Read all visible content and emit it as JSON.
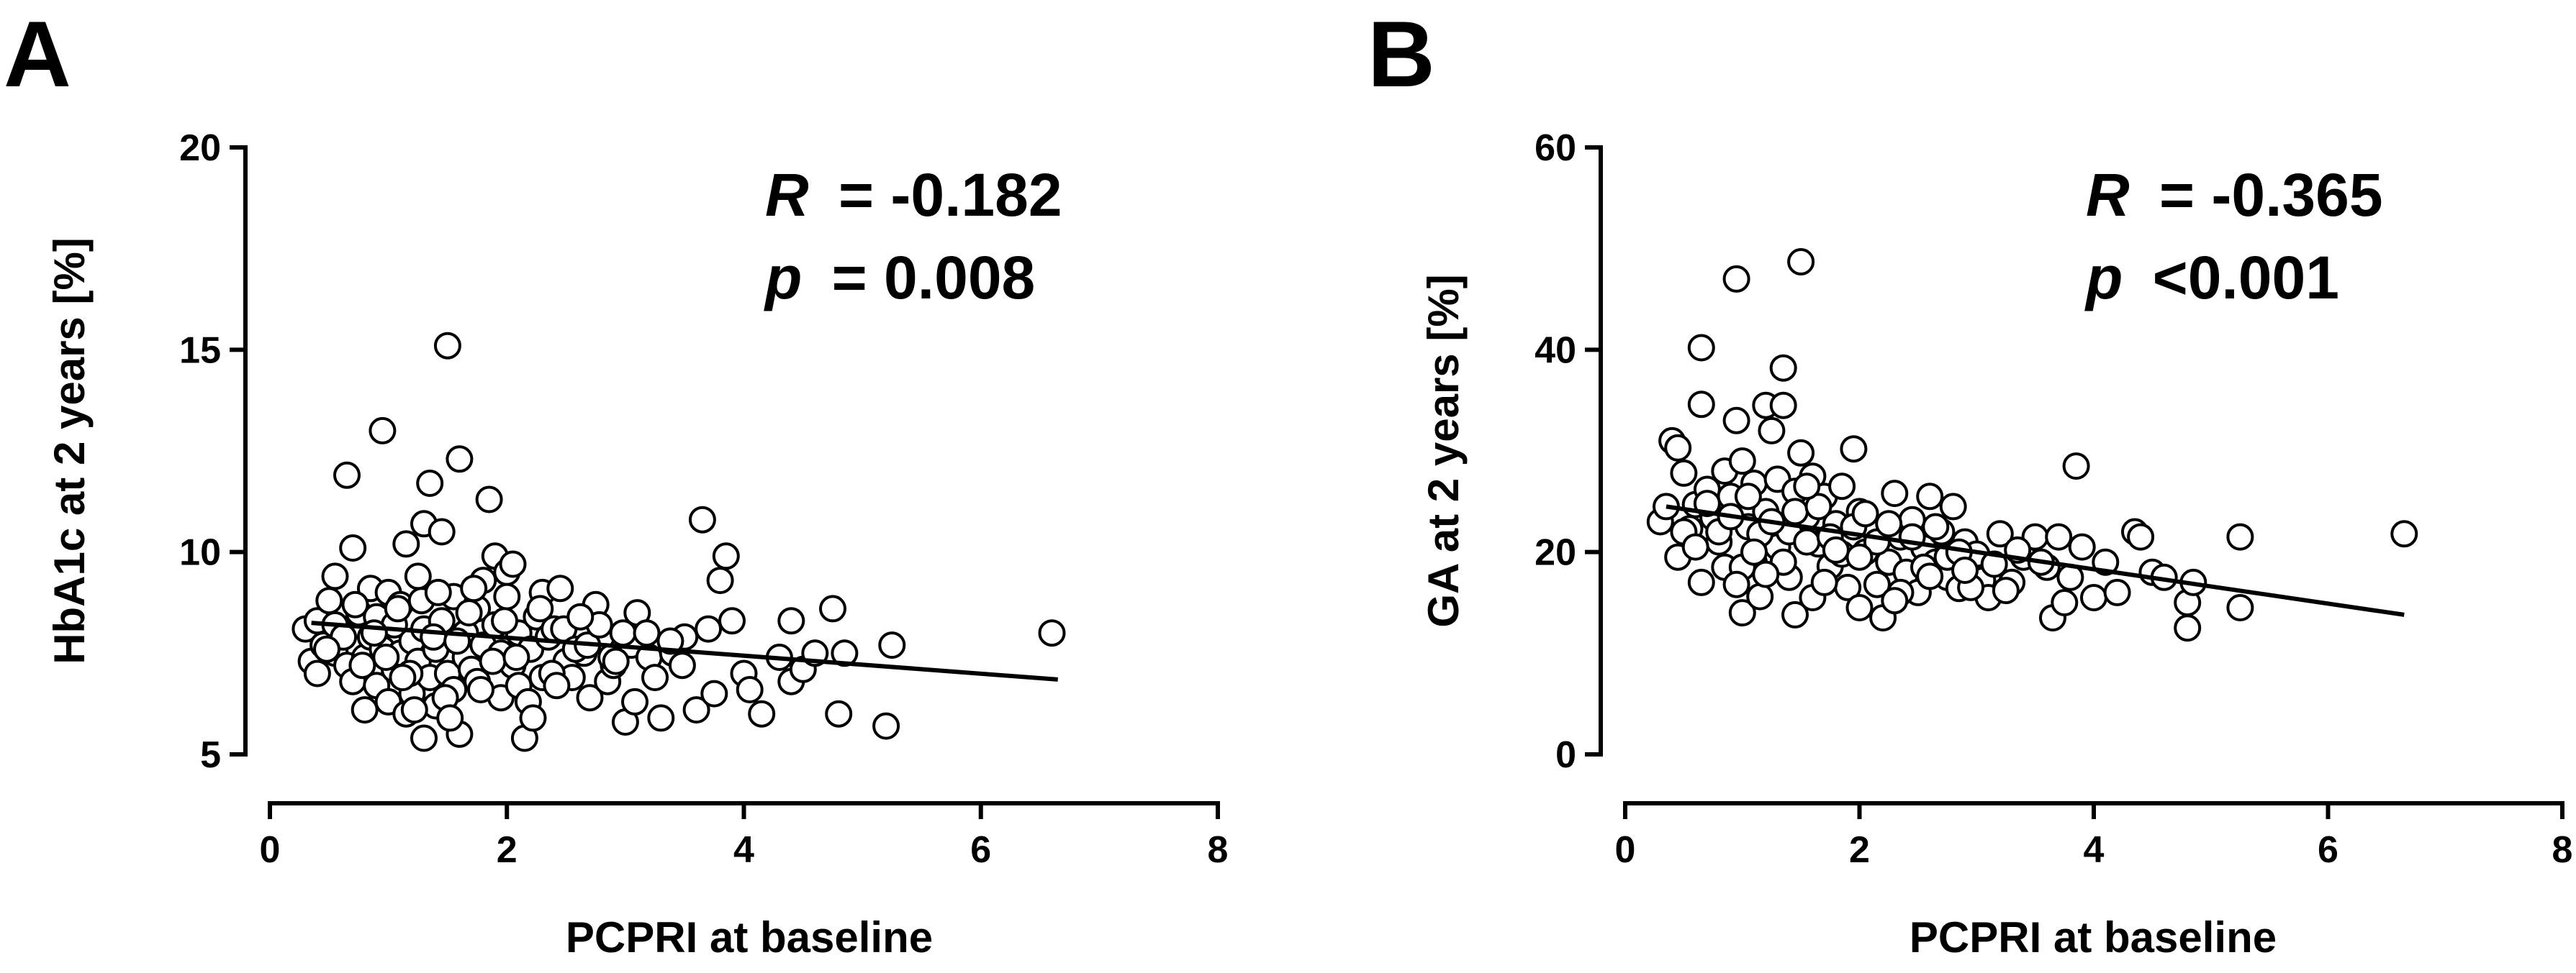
{
  "panels": [
    {
      "letter": "A",
      "stat_r_label": "R",
      "stat_r_value": "= -0.182",
      "stat_p_label": "p",
      "stat_p_value": "= 0.008"
    },
    {
      "letter": "B",
      "stat_r_label": "R",
      "stat_r_value": "= -0.365",
      "stat_p_label": "p",
      "stat_p_value": "<0.001"
    }
  ],
  "chart_data": [
    {
      "type": "scatter",
      "title": "",
      "xlabel": "PCPRI at baseline",
      "ylabel": "HbA1c at 2 years [%]",
      "xlim": [
        0,
        8
      ],
      "ylim": [
        5,
        20
      ],
      "xticks": [
        0,
        2,
        4,
        6,
        8
      ],
      "yticks": [
        5,
        10,
        15,
        20
      ],
      "grid": false,
      "annotation": {
        "R": "-0.182",
        "p": "0.008"
      },
      "regression": {
        "x": [
          0.35,
          6.65
        ],
        "y": [
          8.25,
          6.85
        ]
      },
      "points": [
        [
          0.3,
          8.1
        ],
        [
          0.35,
          7.3
        ],
        [
          0.4,
          7.0
        ],
        [
          0.4,
          8.3
        ],
        [
          0.45,
          7.7
        ],
        [
          0.5,
          8.8
        ],
        [
          0.55,
          9.4
        ],
        [
          0.55,
          7.5
        ],
        [
          0.6,
          8.0
        ],
        [
          0.65,
          11.9
        ],
        [
          0.65,
          7.2
        ],
        [
          0.7,
          6.8
        ],
        [
          0.7,
          10.1
        ],
        [
          0.75,
          8.5
        ],
        [
          0.8,
          7.4
        ],
        [
          0.8,
          6.1
        ],
        [
          0.85,
          9.1
        ],
        [
          0.85,
          7.9
        ],
        [
          0.9,
          6.7
        ],
        [
          0.9,
          8.4
        ],
        [
          0.95,
          13.0
        ],
        [
          0.95,
          7.6
        ],
        [
          1.0,
          9.0
        ],
        [
          1.0,
          6.3
        ],
        [
          1.05,
          8.2
        ],
        [
          1.05,
          7.1
        ],
        [
          1.1,
          7.5
        ],
        [
          1.1,
          8.7
        ],
        [
          1.15,
          6.0
        ],
        [
          1.15,
          10.2
        ],
        [
          1.2,
          6.5
        ],
        [
          1.2,
          7.8
        ],
        [
          1.25,
          9.4
        ],
        [
          1.25,
          7.3
        ],
        [
          1.3,
          5.4
        ],
        [
          1.3,
          8.1
        ],
        [
          1.3,
          10.7
        ],
        [
          1.35,
          11.7
        ],
        [
          1.35,
          6.9
        ],
        [
          1.4,
          7.6
        ],
        [
          1.4,
          6.2
        ],
        [
          1.45,
          10.5
        ],
        [
          1.45,
          8.3
        ],
        [
          1.5,
          15.1
        ],
        [
          1.5,
          7.0
        ],
        [
          1.55,
          8.9
        ],
        [
          1.55,
          6.6
        ],
        [
          1.6,
          12.3
        ],
        [
          1.6,
          5.5
        ],
        [
          1.65,
          7.4
        ],
        [
          1.65,
          8.0
        ],
        [
          1.7,
          7.1
        ],
        [
          1.75,
          6.8
        ],
        [
          1.75,
          8.6
        ],
        [
          1.8,
          9.3
        ],
        [
          1.8,
          7.7
        ],
        [
          1.85,
          11.3
        ],
        [
          1.9,
          9.9
        ],
        [
          1.9,
          8.2
        ],
        [
          1.95,
          7.5
        ],
        [
          1.95,
          6.4
        ],
        [
          2.0,
          9.5
        ],
        [
          2.0,
          8.9
        ],
        [
          2.05,
          9.7
        ],
        [
          2.05,
          7.2
        ],
        [
          2.1,
          6.7
        ],
        [
          2.1,
          8.0
        ],
        [
          2.15,
          5.4
        ],
        [
          2.2,
          7.6
        ],
        [
          2.25,
          8.4
        ],
        [
          2.3,
          9.0
        ],
        [
          2.3,
          6.9
        ],
        [
          2.35,
          7.9
        ],
        [
          2.4,
          8.1
        ],
        [
          2.45,
          9.1
        ],
        [
          2.5,
          7.3
        ],
        [
          2.55,
          6.9
        ],
        [
          2.6,
          8.0
        ],
        [
          2.65,
          7.5
        ],
        [
          2.7,
          6.4
        ],
        [
          2.75,
          8.7
        ],
        [
          2.8,
          7.9
        ],
        [
          2.85,
          6.8
        ],
        [
          2.9,
          7.2
        ],
        [
          3.0,
          5.8
        ],
        [
          3.05,
          7.7
        ],
        [
          3.1,
          8.5
        ],
        [
          3.2,
          7.4
        ],
        [
          3.25,
          6.9
        ],
        [
          3.3,
          5.9
        ],
        [
          3.4,
          7.5
        ],
        [
          3.5,
          7.9
        ],
        [
          3.6,
          6.1
        ],
        [
          3.65,
          10.8
        ],
        [
          3.7,
          8.1
        ],
        [
          3.75,
          6.5
        ],
        [
          3.8,
          9.3
        ],
        [
          3.85,
          9.9
        ],
        [
          3.9,
          8.3
        ],
        [
          4.0,
          7.0
        ],
        [
          4.05,
          6.6
        ],
        [
          4.15,
          6.0
        ],
        [
          4.3,
          7.4
        ],
        [
          4.4,
          6.8
        ],
        [
          4.4,
          8.3
        ],
        [
          4.5,
          7.1
        ],
        [
          4.6,
          7.5
        ],
        [
          4.75,
          8.6
        ],
        [
          4.8,
          6.0
        ],
        [
          4.85,
          7.5
        ],
        [
          5.2,
          5.7
        ],
        [
          5.25,
          7.7
        ],
        [
          6.6,
          8.0
        ],
        [
          0.55,
          8.2
        ],
        [
          0.62,
          7.9
        ],
        [
          0.72,
          8.7
        ],
        [
          0.78,
          7.2
        ],
        [
          0.88,
          8.0
        ],
        [
          0.98,
          7.4
        ],
        [
          1.08,
          8.6
        ],
        [
          1.18,
          7.0
        ],
        [
          1.28,
          8.8
        ],
        [
          1.38,
          7.9
        ],
        [
          1.48,
          6.4
        ],
        [
          1.58,
          7.8
        ],
        [
          1.68,
          8.5
        ],
        [
          1.78,
          6.6
        ],
        [
          1.88,
          7.3
        ],
        [
          1.98,
          8.3
        ],
        [
          2.08,
          7.4
        ],
        [
          2.18,
          6.3
        ],
        [
          2.28,
          8.6
        ],
        [
          2.38,
          7.0
        ],
        [
          2.48,
          8.1
        ],
        [
          2.58,
          7.6
        ],
        [
          2.68,
          7.7
        ],
        [
          2.78,
          8.2
        ],
        [
          2.88,
          7.4
        ],
        [
          2.98,
          8.0
        ],
        [
          3.08,
          6.3
        ],
        [
          3.18,
          8.0
        ],
        [
          3.38,
          7.8
        ],
        [
          1.22,
          6.1
        ],
        [
          1.42,
          9.0
        ],
        [
          1.72,
          9.1
        ],
        [
          2.22,
          5.9
        ],
        [
          2.42,
          6.7
        ],
        [
          0.48,
          7.6
        ],
        [
          1.12,
          6.9
        ],
        [
          2.62,
          8.4
        ],
        [
          2.92,
          7.3
        ],
        [
          3.48,
          7.2
        ],
        [
          1.52,
          5.9
        ]
      ]
    },
    {
      "type": "scatter",
      "title": "",
      "xlabel": "PCPRI at baseline",
      "ylabel": "GA at 2 years [%]",
      "xlim": [
        0,
        8
      ],
      "ylim": [
        0,
        60
      ],
      "xticks": [
        0,
        2,
        4,
        6,
        8
      ],
      "yticks": [
        0,
        20,
        40,
        60
      ],
      "grid": false,
      "annotation": {
        "R": "-0.365",
        "p": "<0.001"
      },
      "regression": {
        "x": [
          0.35,
          6.65
        ],
        "y": [
          24.5,
          13.8
        ]
      },
      "points": [
        [
          0.3,
          23.0
        ],
        [
          0.35,
          24.5
        ],
        [
          0.4,
          31.0
        ],
        [
          0.45,
          30.3
        ],
        [
          0.45,
          19.5
        ],
        [
          0.5,
          27.8
        ],
        [
          0.55,
          22.3
        ],
        [
          0.6,
          24.7
        ],
        [
          0.65,
          40.2
        ],
        [
          0.65,
          34.6
        ],
        [
          0.65,
          17.0
        ],
        [
          0.7,
          26.2
        ],
        [
          0.75,
          23.4
        ],
        [
          0.8,
          21.0
        ],
        [
          0.85,
          28.0
        ],
        [
          0.85,
          18.5
        ],
        [
          0.9,
          25.5
        ],
        [
          0.95,
          47.0
        ],
        [
          0.95,
          33.0
        ],
        [
          1.0,
          29.0
        ],
        [
          1.0,
          14.0
        ],
        [
          1.05,
          22.5
        ],
        [
          1.1,
          19.0
        ],
        [
          1.1,
          26.8
        ],
        [
          1.15,
          15.6
        ],
        [
          1.2,
          24.0
        ],
        [
          1.2,
          34.5
        ],
        [
          1.25,
          32.0
        ],
        [
          1.3,
          20.5
        ],
        [
          1.3,
          27.2
        ],
        [
          1.35,
          38.2
        ],
        [
          1.35,
          34.5
        ],
        [
          1.4,
          22.0
        ],
        [
          1.4,
          17.5
        ],
        [
          1.45,
          26.0
        ],
        [
          1.45,
          13.8
        ],
        [
          1.5,
          48.7
        ],
        [
          1.5,
          29.8
        ],
        [
          1.55,
          23.5
        ],
        [
          1.6,
          27.5
        ],
        [
          1.6,
          15.5
        ],
        [
          1.65,
          20.8
        ],
        [
          1.7,
          25.5
        ],
        [
          1.75,
          18.6
        ],
        [
          1.8,
          22.8
        ],
        [
          1.85,
          26.5
        ],
        [
          1.9,
          16.5
        ],
        [
          1.95,
          30.2
        ],
        [
          2.0,
          24.0
        ],
        [
          2.0,
          14.5
        ],
        [
          2.05,
          20.0
        ],
        [
          2.1,
          22.5
        ],
        [
          2.15,
          16.8
        ],
        [
          2.2,
          13.5
        ],
        [
          2.25,
          19.0
        ],
        [
          2.3,
          25.8
        ],
        [
          2.35,
          21.5
        ],
        [
          2.4,
          18.0
        ],
        [
          2.45,
          23.2
        ],
        [
          2.5,
          16.0
        ],
        [
          2.55,
          20.4
        ],
        [
          2.6,
          25.5
        ],
        [
          2.65,
          19.0
        ],
        [
          2.7,
          22.0
        ],
        [
          2.75,
          17.5
        ],
        [
          2.8,
          24.5
        ],
        [
          2.85,
          16.4
        ],
        [
          2.9,
          21.0
        ],
        [
          3.0,
          19.8
        ],
        [
          3.05,
          17.2
        ],
        [
          3.1,
          15.5
        ],
        [
          3.2,
          21.8
        ],
        [
          3.3,
          17.0
        ],
        [
          3.4,
          19.5
        ],
        [
          3.5,
          21.5
        ],
        [
          3.6,
          18.5
        ],
        [
          3.65,
          13.5
        ],
        [
          3.7,
          21.5
        ],
        [
          3.75,
          15.0
        ],
        [
          3.8,
          17.5
        ],
        [
          3.85,
          28.5
        ],
        [
          3.9,
          20.5
        ],
        [
          4.0,
          15.5
        ],
        [
          4.1,
          19.0
        ],
        [
          4.2,
          16.0
        ],
        [
          4.35,
          22.0
        ],
        [
          4.4,
          21.5
        ],
        [
          4.5,
          18.0
        ],
        [
          4.6,
          17.5
        ],
        [
          4.8,
          12.5
        ],
        [
          4.8,
          15.0
        ],
        [
          4.85,
          17.0
        ],
        [
          5.25,
          14.5
        ],
        [
          5.25,
          21.5
        ],
        [
          6.65,
          21.8
        ],
        [
          0.5,
          22.0
        ],
        [
          0.6,
          20.5
        ],
        [
          0.7,
          24.8
        ],
        [
          0.8,
          22.0
        ],
        [
          0.9,
          23.5
        ],
        [
          1.0,
          18.5
        ],
        [
          1.05,
          25.5
        ],
        [
          1.15,
          21.8
        ],
        [
          1.25,
          23.0
        ],
        [
          1.35,
          19.0
        ],
        [
          1.45,
          24.0
        ],
        [
          1.55,
          21.0
        ],
        [
          1.65,
          24.5
        ],
        [
          1.75,
          21.5
        ],
        [
          1.85,
          19.8
        ],
        [
          1.95,
          22.5
        ],
        [
          2.05,
          23.8
        ],
        [
          2.15,
          21.0
        ],
        [
          2.25,
          22.8
        ],
        [
          2.35,
          16.0
        ],
        [
          2.45,
          21.5
        ],
        [
          2.55,
          18.5
        ],
        [
          2.65,
          22.5
        ],
        [
          2.75,
          19.5
        ],
        [
          2.85,
          20.0
        ],
        [
          2.95,
          16.5
        ],
        [
          3.15,
          18.8
        ],
        [
          3.35,
          20.2
        ],
        [
          3.55,
          19.0
        ],
        [
          1.2,
          17.8
        ],
        [
          1.7,
          17.0
        ],
        [
          2.3,
          15.2
        ],
        [
          2.9,
          18.2
        ],
        [
          0.95,
          16.8
        ],
        [
          1.55,
          26.5
        ],
        [
          2.0,
          19.5
        ],
        [
          1.1,
          20.0
        ],
        [
          1.8,
          20.2
        ],
        [
          2.6,
          17.6
        ],
        [
          3.25,
          16.2
        ]
      ]
    }
  ]
}
